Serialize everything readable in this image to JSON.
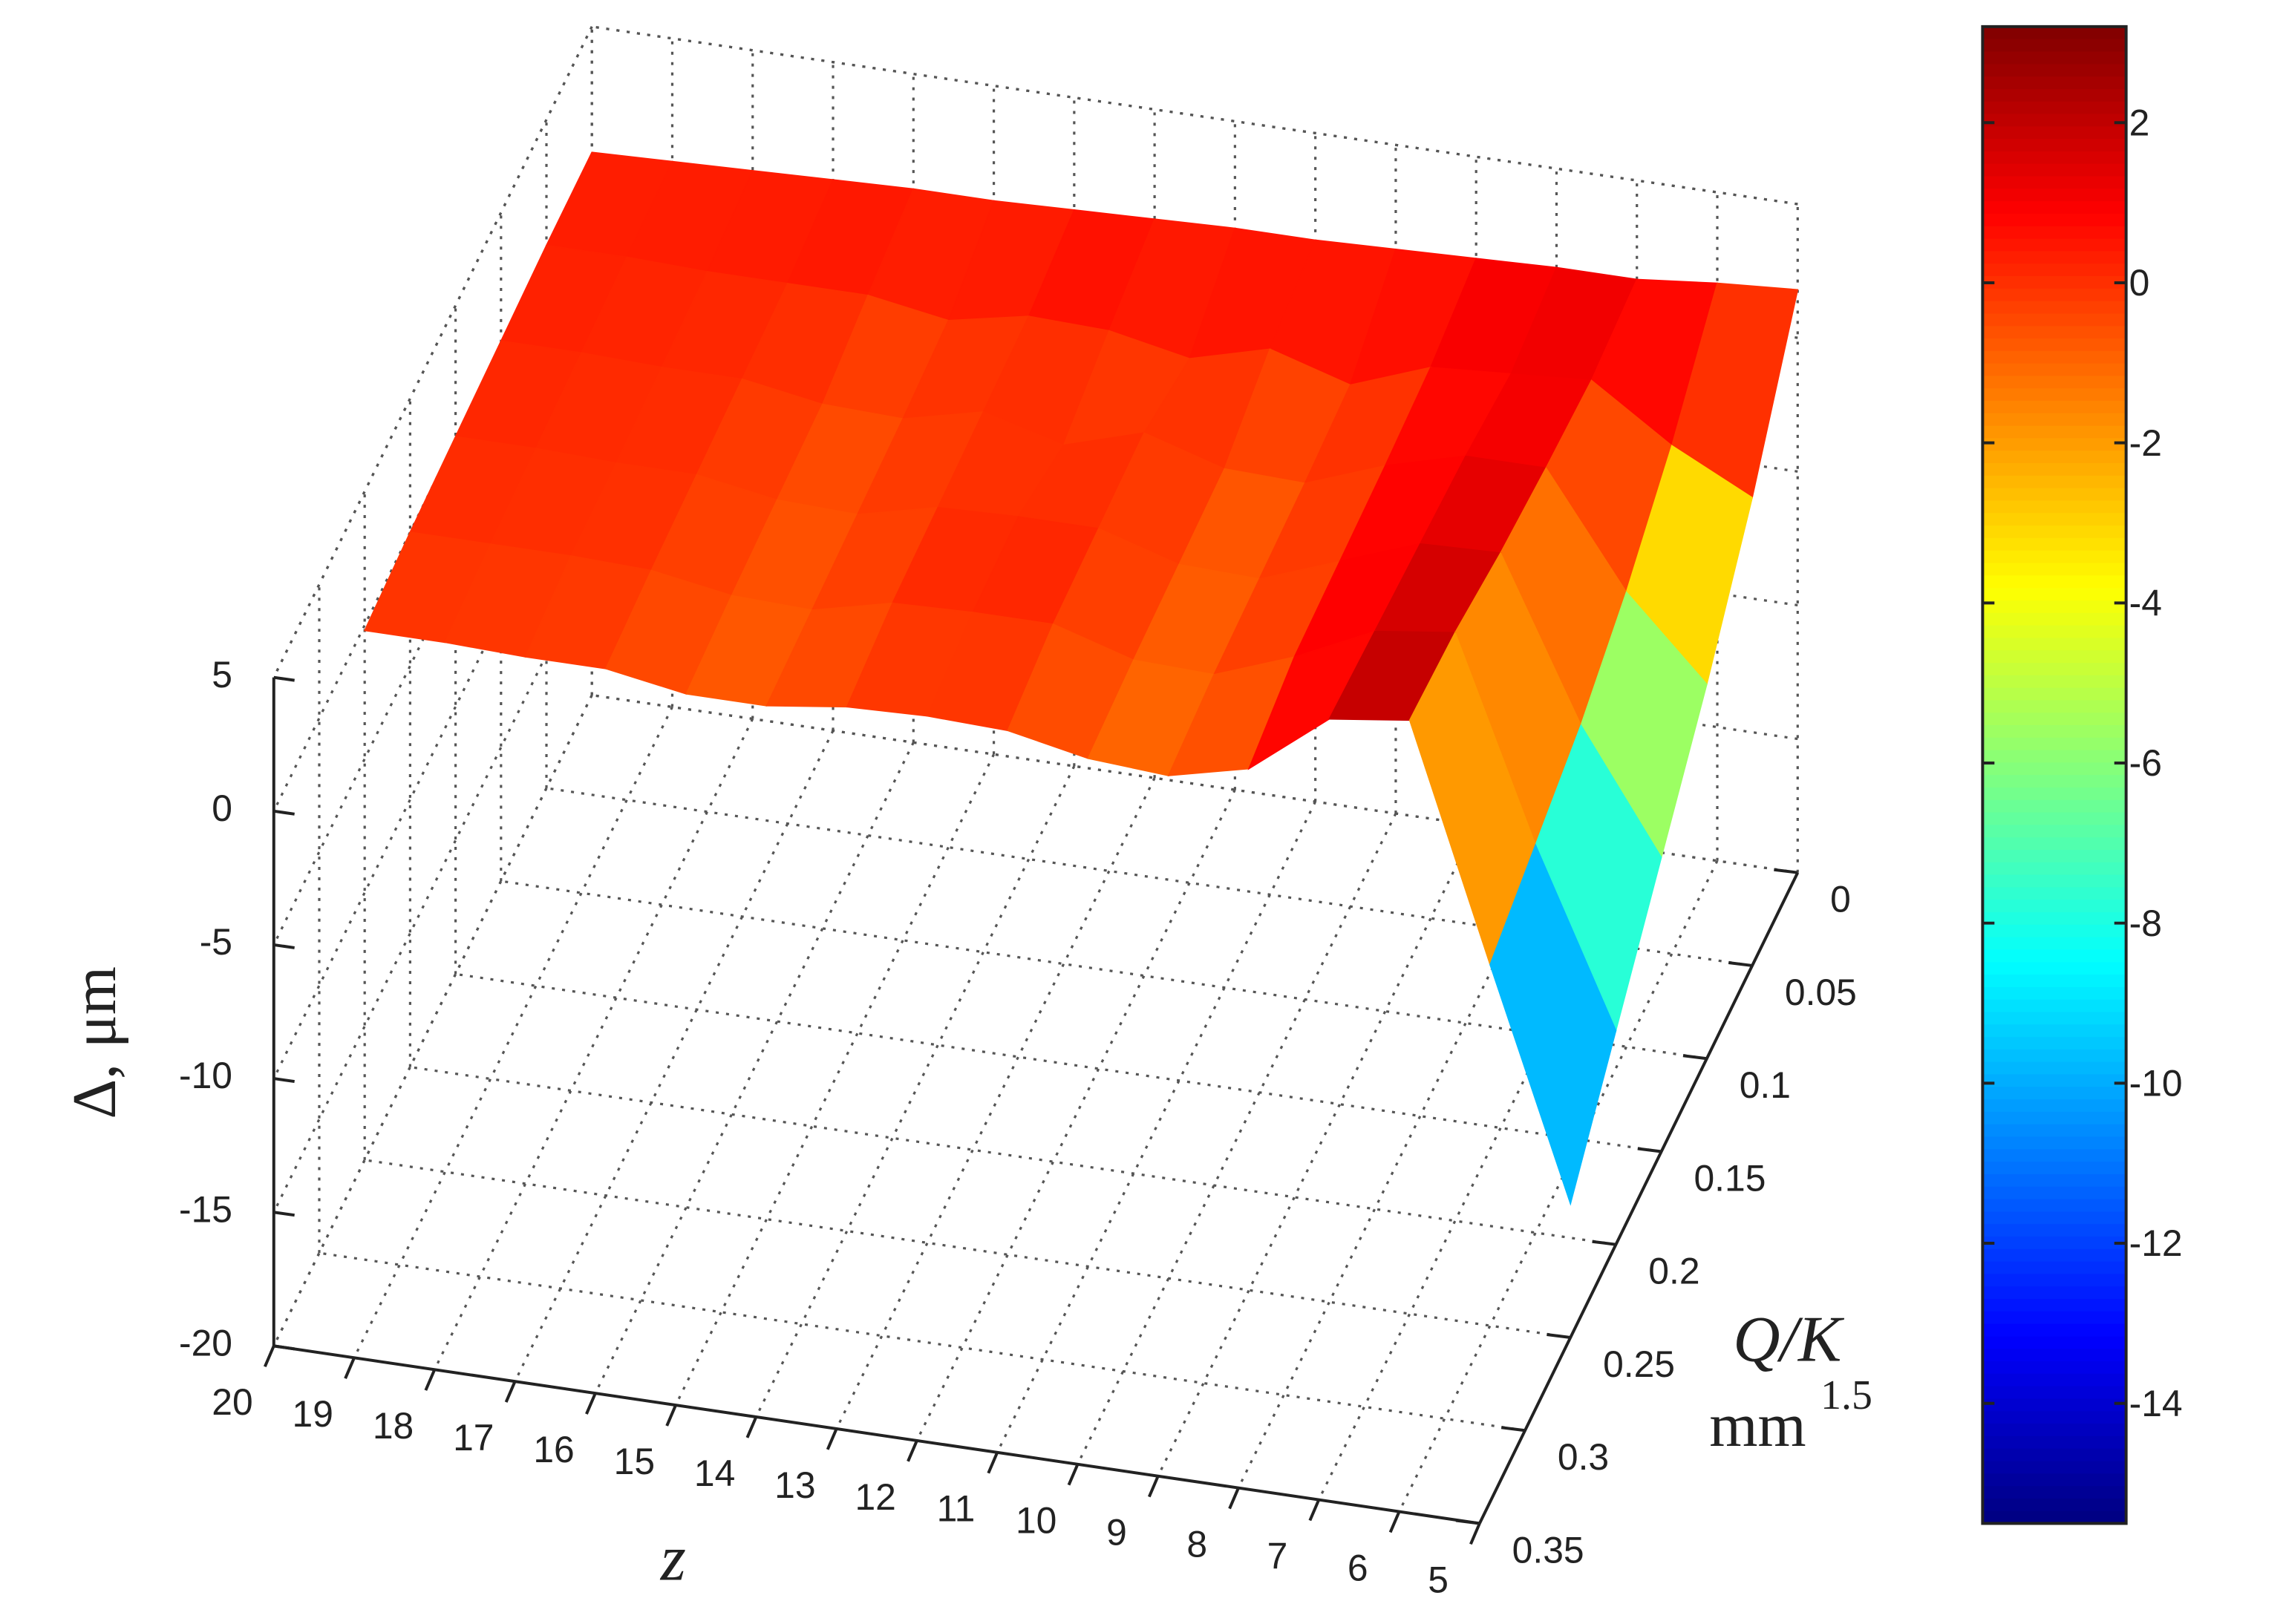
{
  "chart_data": {
    "type": "surface",
    "xlabel": "z",
    "ylabel": "Q/K",
    "ylabel_unit": "mm",
    "ylabel_exp": "1.5",
    "zlabel": "Δ,  μm",
    "x": [
      20,
      19,
      18,
      17,
      16,
      15,
      14,
      13,
      12,
      11,
      10,
      9,
      8,
      7,
      6,
      5
    ],
    "y": [
      0,
      0.05,
      0.1,
      0.15,
      0.2,
      0.25
    ],
    "values": [
      [
        0.3,
        0.4,
        0.5,
        0.6,
        0.7,
        0.7,
        0.8,
        0.9,
        1.0,
        1.0,
        1.1,
        1.2,
        1.3,
        1.3,
        1.6,
        1.8
      ],
      [
        0.3,
        0.3,
        0.2,
        0.2,
        0.2,
        -0.3,
        0.3,
        0.2,
        -0.4,
        0.4,
        -0.5,
        0.6,
        0.8,
        1.0,
        -1.0,
        -2.5
      ],
      [
        0.2,
        0.2,
        0.1,
        0.1,
        -0.4,
        -0.5,
        0.2,
        -0.6,
        0.3,
        -0.6,
        -0.7,
        0.4,
        1.2,
        1.2,
        -3.0,
        -6.0
      ],
      [
        0.1,
        0.1,
        0.0,
        0.0,
        -0.5,
        -0.6,
        0.1,
        0.2,
        0.2,
        -0.7,
        -0.8,
        0.3,
        1.4,
        1.5,
        -4.5,
        -9.0
      ],
      [
        0.0,
        0.0,
        0.0,
        -0.1,
        -0.6,
        -0.7,
        0.0,
        0.1,
        0.1,
        -0.8,
        -0.9,
        0.2,
        1.6,
        2.0,
        -5.5,
        -12.0
      ],
      [
        -0.2,
        -0.2,
        -0.3,
        -0.3,
        -0.8,
        -0.8,
        -0.4,
        -0.3,
        -0.4,
        -1.0,
        -1.2,
        -0.5,
        1.8,
        2.2,
        -6.5,
        -15.0
      ]
    ],
    "xlim": [
      5,
      20
    ],
    "ylim": [
      0,
      0.35
    ],
    "zlim": [
      -20,
      5
    ],
    "xticks": [
      20,
      19,
      18,
      17,
      16,
      15,
      14,
      13,
      12,
      11,
      10,
      9,
      8,
      7,
      6,
      5
    ],
    "yticks": [
      0,
      0.05,
      0.1,
      0.15,
      0.2,
      0.25,
      0.3,
      0.35
    ],
    "zticks": [
      5,
      0,
      -5,
      -10,
      -15,
      -20
    ],
    "grid": true,
    "colormap": "jet",
    "clim": [
      -15.5,
      3.2
    ],
    "cticks": [
      2,
      0,
      -2,
      -4,
      -6,
      -8,
      -10,
      -12,
      -14
    ]
  }
}
